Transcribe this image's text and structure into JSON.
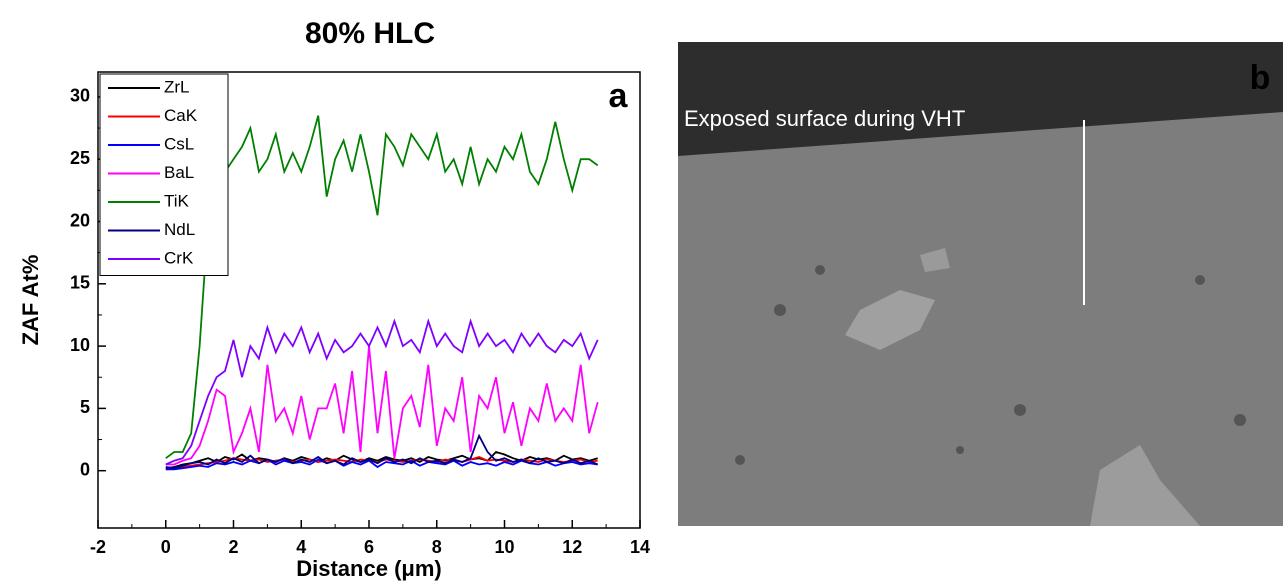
{
  "chart_data": {
    "type": "line",
    "title": "80% HLC",
    "panel_label": "a",
    "xlabel": "Distance (μm)",
    "ylabel": "ZAF At%",
    "xlim": [
      -2,
      14
    ],
    "ylim": [
      -4.6,
      32
    ],
    "xticks": [
      -2,
      0,
      2,
      4,
      6,
      8,
      10,
      12,
      14
    ],
    "yticks": [
      0,
      5,
      10,
      15,
      20,
      25,
      30
    ],
    "legend": "upper left",
    "x": [
      0,
      0.25,
      0.5,
      0.75,
      1,
      1.25,
      1.5,
      1.75,
      2,
      2.25,
      2.5,
      2.75,
      3,
      3.25,
      3.5,
      3.75,
      4,
      4.25,
      4.5,
      4.75,
      5,
      5.25,
      5.5,
      5.75,
      6,
      6.25,
      6.5,
      6.75,
      7,
      7.25,
      7.5,
      7.75,
      8,
      8.25,
      8.5,
      8.75,
      9,
      9.25,
      9.5,
      9.75,
      10,
      10.25,
      10.5,
      10.75,
      11,
      11.25,
      11.5,
      11.75,
      12,
      12.25,
      12.5,
      12.75
    ],
    "series": [
      {
        "name": "ZrL",
        "color": "#000000",
        "values": [
          0.2,
          0.3,
          0.5,
          0.6,
          0.8,
          1.0,
          0.7,
          1.1,
          0.9,
          1.3,
          0.8,
          1.0,
          0.9,
          0.7,
          1.0,
          0.8,
          1.1,
          0.9,
          0.7,
          1.0,
          0.8,
          1.2,
          0.9,
          0.7,
          1.0,
          0.8,
          1.1,
          0.9,
          0.8,
          1.0,
          0.7,
          1.1,
          0.9,
          0.8,
          1.0,
          1.2,
          0.9,
          1.0,
          0.8,
          1.5,
          1.3,
          1.0,
          0.8,
          1.1,
          0.9,
          1.0,
          0.8,
          1.2,
          0.9,
          1.0,
          0.8,
          1.0
        ]
      },
      {
        "name": "CaK",
        "color": "#ff0000",
        "values": [
          0.1,
          0.2,
          0.3,
          0.4,
          0.5,
          0.6,
          0.7,
          0.8,
          1.0,
          0.9,
          0.8,
          0.9,
          0.7,
          0.8,
          0.9,
          0.7,
          0.8,
          0.9,
          0.7,
          0.8,
          0.9,
          0.8,
          0.7,
          0.9,
          0.8,
          0.7,
          0.9,
          0.8,
          0.7,
          0.8,
          0.9,
          0.8,
          0.7,
          0.9,
          0.8,
          0.7,
          0.9,
          1.1,
          0.8,
          0.9,
          0.8,
          0.7,
          0.9,
          0.8,
          0.7,
          0.9,
          0.8,
          0.7,
          0.8,
          0.9,
          0.7,
          0.8
        ]
      },
      {
        "name": "CsL",
        "color": "#0000ff",
        "values": [
          0.1,
          0.1,
          0.2,
          0.3,
          0.4,
          0.3,
          0.6,
          0.5,
          0.7,
          0.5,
          0.8,
          0.6,
          0.9,
          0.5,
          0.8,
          0.6,
          0.7,
          0.5,
          0.9,
          0.6,
          0.8,
          0.4,
          0.7,
          0.5,
          0.8,
          0.3,
          0.7,
          0.6,
          0.5,
          0.8,
          0.4,
          0.7,
          0.6,
          0.5,
          0.8,
          0.4,
          0.7,
          0.5,
          0.6,
          0.4,
          0.7,
          0.5,
          0.8,
          0.6,
          0.5,
          0.7,
          0.4,
          0.6,
          0.7,
          0.5,
          0.6,
          0.5
        ]
      },
      {
        "name": "BaL",
        "color": "#ff00ff",
        "values": [
          0.5,
          0.5,
          0.8,
          1,
          2,
          4,
          6.5,
          6,
          1.5,
          3,
          5,
          1.5,
          8.5,
          4,
          5,
          3,
          6,
          2.5,
          5,
          5,
          7,
          3,
          8,
          1.5,
          10,
          3,
          8,
          1,
          5,
          6,
          3.5,
          8.5,
          2,
          5,
          4,
          7.5,
          1.5,
          6,
          5,
          7.5,
          3,
          5.5,
          2,
          5,
          4,
          7,
          4,
          5,
          4,
          8.5,
          3,
          5.5
        ]
      },
      {
        "name": "TiK",
        "color": "#008000",
        "values": [
          1,
          1.5,
          1.5,
          3,
          10,
          20,
          23,
          24,
          25,
          26,
          27.5,
          24,
          25,
          27,
          24,
          25.5,
          24,
          26,
          28.5,
          22,
          25,
          26.5,
          24,
          27,
          24,
          20.5,
          27,
          26,
          24.5,
          27,
          26,
          25,
          27,
          24,
          25,
          23,
          26,
          23,
          25,
          24,
          26,
          25,
          27,
          24,
          23,
          25,
          28,
          25,
          22.5,
          25,
          25,
          24.5
        ]
      },
      {
        "name": "NdL",
        "color": "#000080",
        "values": [
          0.3,
          0.2,
          0.4,
          0.6,
          0.7,
          0.5,
          0.9,
          0.6,
          1.0,
          0.7,
          1.2,
          0.6,
          0.9,
          0.7,
          1.0,
          0.6,
          0.9,
          0.7,
          1.1,
          0.6,
          0.8,
          0.5,
          1.0,
          0.7,
          0.9,
          0.6,
          1.0,
          0.7,
          0.9,
          0.6,
          1.0,
          0.7,
          0.8,
          0.6,
          0.9,
          0.7,
          1.0,
          2.8,
          1.5,
          0.8,
          1.0,
          0.7,
          0.9,
          0.6,
          1.0,
          0.7,
          0.8,
          0.6,
          0.9,
          0.6,
          0.8,
          0.5
        ]
      },
      {
        "name": "CrK",
        "color": "#8000ff",
        "values": [
          0.5,
          0.8,
          1,
          2,
          4,
          6,
          7.5,
          8,
          10.5,
          7.5,
          10,
          9,
          11.5,
          9.5,
          11,
          10,
          11.5,
          9.5,
          11,
          9,
          10.5,
          9.5,
          10,
          11,
          10,
          11.5,
          10,
          12,
          10,
          10.5,
          9.5,
          12,
          10,
          11,
          10,
          9.5,
          12,
          10,
          11,
          10,
          10.5,
          9.5,
          11,
          10,
          11,
          10,
          9.5,
          10.5,
          10,
          11,
          9,
          10.5
        ]
      }
    ]
  },
  "panel_b": {
    "label": "b",
    "annotation": "Exposed surface during VHT"
  }
}
